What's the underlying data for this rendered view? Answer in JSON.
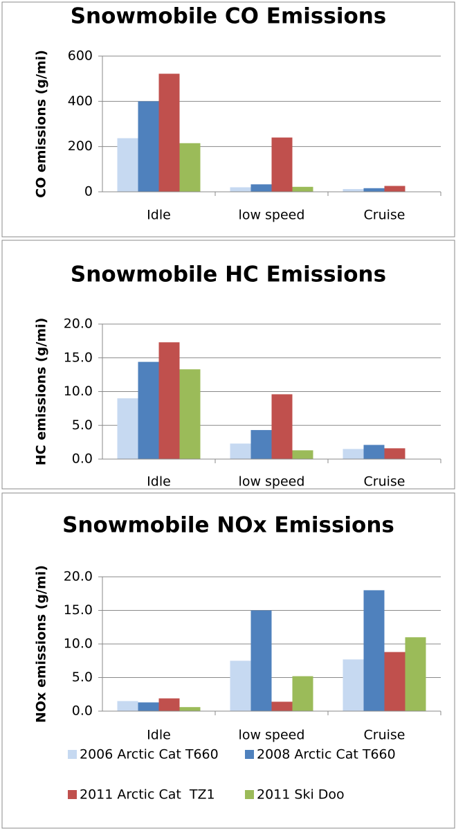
{
  "chart_data": [
    {
      "type": "bar",
      "title": "Snowmobile CO Emissions",
      "y_label": "CO emissions (g/mi)",
      "categories": [
        "Idle",
        "low speed",
        "Cruise"
      ],
      "series": [
        {
          "color": "#c6d9f1",
          "values": [
            237,
            20,
            12
          ]
        },
        {
          "color": "#4f81bd",
          "values": [
            400,
            33,
            16
          ]
        },
        {
          "color": "#c0504d",
          "values": [
            522,
            240,
            26
          ]
        },
        {
          "color": "#9bbb59",
          "values": [
            215,
            22,
            0
          ]
        }
      ],
      "ylim": [
        0,
        600
      ],
      "yticks": [
        0,
        200,
        400,
        600
      ],
      "grid": true
    },
    {
      "type": "bar",
      "title": "Snowmobile HC Emissions",
      "y_label": "HC  emissions (g/mi)",
      "categories": [
        "Idle",
        "low speed",
        "Cruise"
      ],
      "series": [
        {
          "color": "#c6d9f1",
          "values": [
            9.0,
            2.3,
            1.5
          ]
        },
        {
          "color": "#4f81bd",
          "values": [
            14.4,
            4.3,
            2.1
          ]
        },
        {
          "color": "#c0504d",
          "values": [
            17.3,
            9.6,
            1.6
          ]
        },
        {
          "color": "#9bbb59",
          "values": [
            13.3,
            1.3,
            0
          ]
        }
      ],
      "ylim": [
        0,
        20
      ],
      "yticks": [
        {
          "value": 0,
          "label": "0.0"
        },
        {
          "value": 5,
          "label": "5.0"
        },
        {
          "value": 10,
          "label": "10.0"
        },
        {
          "value": 15,
          "label": "15.0"
        },
        {
          "value": 20,
          "label": "20.0"
        }
      ],
      "grid": true
    },
    {
      "type": "bar",
      "title": "Snowmobile NOx Emissions",
      "y_label": "NOx  emissions (g/mi)",
      "categories": [
        "Idle",
        "low speed",
        "Cruise"
      ],
      "series": [
        {
          "name": "2006 Arctic Cat T660",
          "color": "#c6d9f1",
          "values": [
            1.5,
            7.5,
            7.7
          ]
        },
        {
          "name": "2008 Arctic Cat T660",
          "color": "#4f81bd",
          "values": [
            1.3,
            15.0,
            18.0
          ]
        },
        {
          "name": "2011 Arctic Cat  TZ1",
          "color": "#c0504d",
          "values": [
            1.9,
            1.4,
            8.8
          ]
        },
        {
          "name": "2011 Ski Doo",
          "color": "#9bbb59",
          "values": [
            0.6,
            5.2,
            11.0
          ]
        }
      ],
      "ylim": [
        0,
        20
      ],
      "yticks": [
        {
          "value": 0,
          "label": "0.0"
        },
        {
          "value": 5,
          "label": "5.0"
        },
        {
          "value": 10,
          "label": "10.0"
        },
        {
          "value": 15,
          "label": "15.0"
        },
        {
          "value": 20,
          "label": "20.0"
        }
      ],
      "grid": true,
      "legend": "bottom"
    }
  ]
}
